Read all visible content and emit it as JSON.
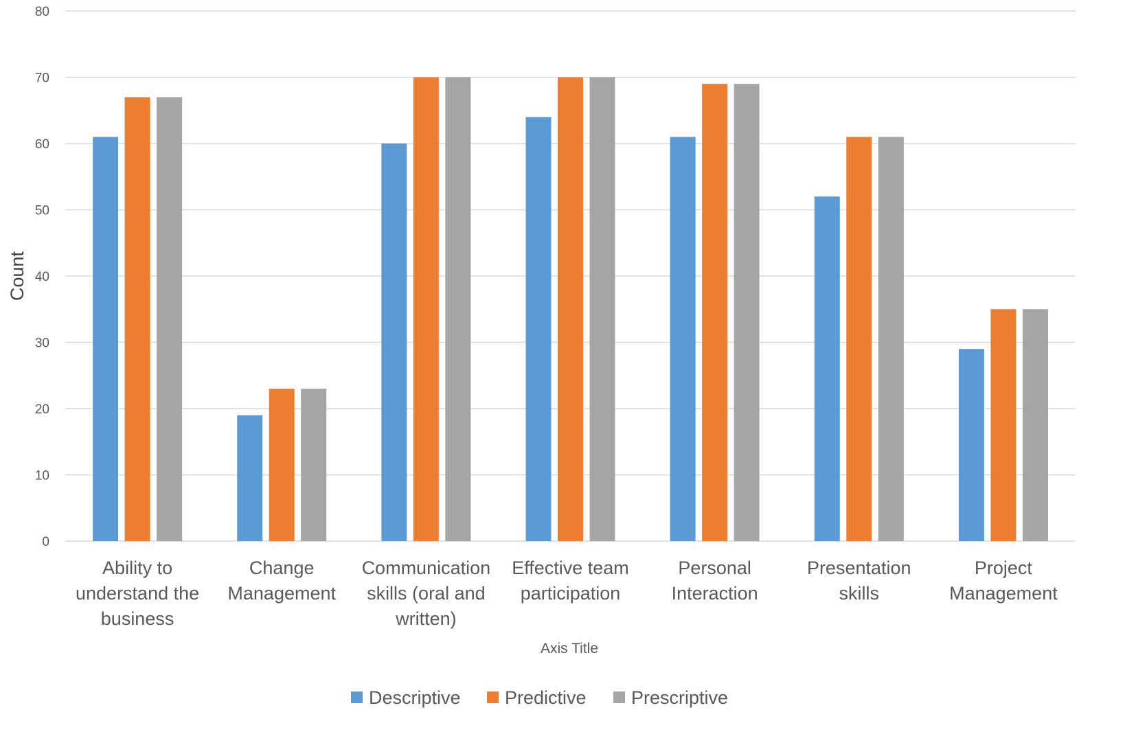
{
  "chart_data": {
    "type": "bar",
    "categories": [
      [
        "Ability to",
        "understand the",
        "business"
      ],
      [
        "Change",
        "Management"
      ],
      [
        "Communication",
        "skills (oral and",
        "written)"
      ],
      [
        "Effective team",
        "participation"
      ],
      [
        "Personal",
        "Interaction"
      ],
      [
        "Presentation",
        "skills"
      ],
      [
        "Project",
        "Management"
      ]
    ],
    "series": [
      {
        "name": "Descriptive",
        "color": "#5B9BD5",
        "values": [
          61,
          19,
          60,
          64,
          61,
          52,
          29
        ]
      },
      {
        "name": "Predictive",
        "color": "#ED7D31",
        "values": [
          67,
          23,
          70,
          70,
          69,
          61,
          35
        ]
      },
      {
        "name": "Prescriptive",
        "color": "#A5A5A5",
        "values": [
          67,
          23,
          70,
          70,
          69,
          61,
          35
        ]
      }
    ],
    "ylabel": "Count",
    "xlabel": "Axis Title",
    "ylim": [
      0,
      80
    ],
    "yticks": [
      0,
      10,
      20,
      30,
      40,
      50,
      60,
      70,
      80
    ],
    "grid": true,
    "legend": "bottom-center"
  }
}
